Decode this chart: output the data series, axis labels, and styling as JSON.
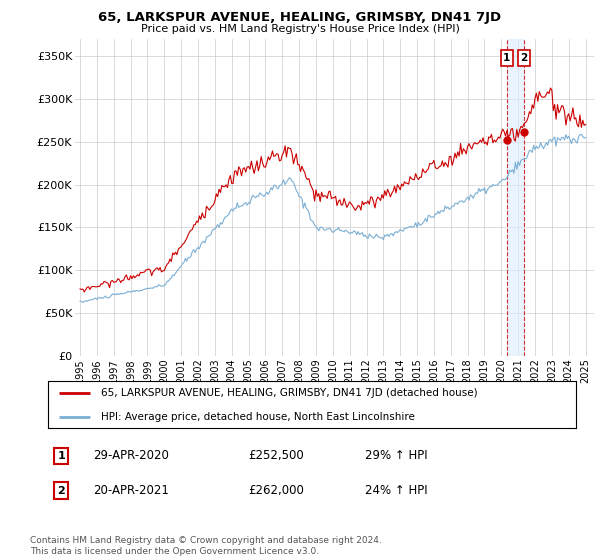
{
  "title": "65, LARKSPUR AVENUE, HEALING, GRIMSBY, DN41 7JD",
  "subtitle": "Price paid vs. HM Land Registry's House Price Index (HPI)",
  "ylabel_ticks": [
    "£0",
    "£50K",
    "£100K",
    "£150K",
    "£200K",
    "£250K",
    "£300K",
    "£350K"
  ],
  "ytick_values": [
    0,
    50000,
    100000,
    150000,
    200000,
    250000,
    300000,
    350000
  ],
  "ylim": [
    0,
    370000
  ],
  "xlim_start": 1994.7,
  "xlim_end": 2025.5,
  "red_color": "#cc0000",
  "blue_color": "#7bafd4",
  "sale_vline_color": "#cc0000",
  "sale_band_color": "#ddeeff",
  "grid_color": "#cccccc",
  "background_color": "#ffffff",
  "sale1": {
    "year": 2020.33,
    "price": 252500,
    "label": "1",
    "date": "29-APR-2020",
    "pct": "29%"
  },
  "sale2": {
    "year": 2021.33,
    "price": 262000,
    "label": "2",
    "date": "20-APR-2021",
    "pct": "24%"
  },
  "legend_red_label": "65, LARKSPUR AVENUE, HEALING, GRIMSBY, DN41 7JD (detached house)",
  "legend_blue_label": "HPI: Average price, detached house, North East Lincolnshire",
  "footer": "Contains HM Land Registry data © Crown copyright and database right 2024.\nThis data is licensed under the Open Government Licence v3.0."
}
